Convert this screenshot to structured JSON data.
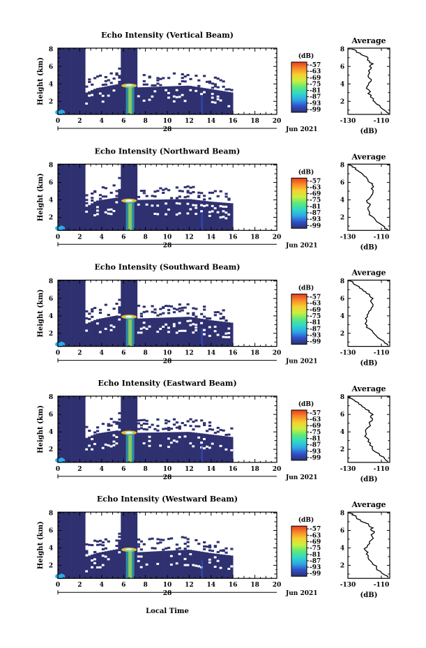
{
  "figure": {
    "bottom_xlabel": "Local Time",
    "date_label": "Jun 2021",
    "day_label": "28",
    "average_title": "Average",
    "average_unit": "(dB)",
    "colorbar_unit": "(dB)",
    "colorbar_ticks": [
      "-57",
      "-63",
      "-69",
      "-75",
      "-81",
      "-87",
      "-93",
      "-99"
    ],
    "colormap": [
      "#2f3070",
      "#3050c8",
      "#2fa8e6",
      "#30d8c8",
      "#5fe87a",
      "#c8f040",
      "#f8d030",
      "#f88a28",
      "#e83a22"
    ],
    "nodata_color": "#ffffff"
  },
  "chart_data": [
    {
      "type": "heatmap",
      "title": "Echo Intensity (Vertical Beam)",
      "ylabel": "Height (km)",
      "xlim": [
        0,
        20
      ],
      "ylim": [
        0.5,
        8.1
      ],
      "xticks": [
        0,
        2,
        4,
        6,
        8,
        10,
        12,
        14,
        16,
        18,
        20
      ],
      "yticks": [
        2,
        4,
        6,
        8
      ],
      "data_end_hour": 16,
      "echo_top_km": [
        [
          0,
          8.1
        ],
        [
          2.5,
          8.1
        ],
        [
          2.6,
          3.0
        ],
        [
          3.5,
          3.5
        ],
        [
          5.6,
          4.0
        ],
        [
          5.7,
          8.1
        ],
        [
          7.2,
          8.1
        ],
        [
          7.3,
          3.6
        ],
        [
          12.0,
          3.8
        ],
        [
          14.0,
          3.4
        ],
        [
          16.0,
          3.0
        ]
      ],
      "strong_echo": [
        {
          "hour": 6.5,
          "km": 3.8,
          "level_db": -69
        },
        {
          "hour": 6.6,
          "km": 1.5,
          "level_db": -81
        },
        {
          "hour": 0.2,
          "km": 1.0,
          "level_db": -87
        }
      ],
      "average": {
        "xlim": [
          -130,
          -105
        ],
        "xticks": [
          -130,
          -110
        ],
        "ylim": [
          0.5,
          8.1
        ],
        "yticks": [
          2,
          4,
          6,
          8
        ],
        "db": [
          -105.5,
          -107.5,
          -110.5,
          -113,
          -115,
          -116.5,
          -118,
          -117.5,
          -118.5,
          -117.5,
          -116,
          -118,
          -117,
          -116.5,
          -117,
          -115,
          -117,
          -118,
          -120,
          -122.5,
          -125,
          -128
        ],
        "km": [
          0.6,
          0.9,
          1.3,
          1.7,
          2.1,
          2.5,
          2.9,
          3.3,
          3.7,
          4.1,
          4.5,
          4.9,
          5.3,
          5.7,
          6.0,
          6.3,
          6.6,
          6.9,
          7.2,
          7.5,
          7.8,
          8.0
        ]
      }
    },
    {
      "type": "heatmap",
      "title": "Echo Intensity (Northward Beam)",
      "ylabel": "Height (km)",
      "xlim": [
        0,
        20
      ],
      "ylim": [
        0.5,
        8.1
      ],
      "xticks": [
        0,
        2,
        4,
        6,
        8,
        10,
        12,
        14,
        16,
        18,
        20
      ],
      "yticks": [
        2,
        4,
        6,
        8
      ],
      "data_end_hour": 16,
      "echo_top_km": [
        [
          0,
          8.1
        ],
        [
          2.5,
          8.1
        ],
        [
          2.6,
          3.2
        ],
        [
          3.5,
          3.9
        ],
        [
          5.6,
          4.3
        ],
        [
          5.7,
          8.1
        ],
        [
          7.2,
          8.1
        ],
        [
          7.3,
          4.0
        ],
        [
          12.0,
          4.1
        ],
        [
          14.0,
          3.8
        ],
        [
          16.0,
          3.6
        ]
      ],
      "strong_echo": [
        {
          "hour": 6.5,
          "km": 3.9,
          "level_db": -69
        },
        {
          "hour": 6.6,
          "km": 1.5,
          "level_db": -81
        },
        {
          "hour": 0.2,
          "km": 1.0,
          "level_db": -87
        }
      ],
      "average": {
        "xlim": [
          -130,
          -105
        ],
        "xticks": [
          -130,
          -110
        ],
        "ylim": [
          0.5,
          8.1
        ],
        "yticks": [
          2,
          4,
          6,
          8
        ],
        "db": [
          -106,
          -108,
          -111,
          -113.5,
          -115.5,
          -117,
          -118,
          -117,
          -118.5,
          -117.5,
          -116,
          -115,
          -116,
          -115.5,
          -117,
          -118,
          -119,
          -121,
          -123,
          -125.5,
          -127.5,
          -129
        ],
        "km": [
          0.6,
          0.9,
          1.3,
          1.7,
          2.1,
          2.5,
          2.9,
          3.3,
          3.7,
          4.1,
          4.5,
          4.9,
          5.3,
          5.7,
          6.0,
          6.3,
          6.6,
          6.9,
          7.2,
          7.5,
          7.8,
          8.0
        ]
      }
    },
    {
      "type": "heatmap",
      "title": "Echo Intensity (Southward Beam)",
      "ylabel": "Height (km)",
      "xlim": [
        0,
        20
      ],
      "ylim": [
        0.5,
        8.1
      ],
      "xticks": [
        0,
        2,
        4,
        6,
        8,
        10,
        12,
        14,
        16,
        18,
        20
      ],
      "yticks": [
        2,
        4,
        6,
        8
      ],
      "data_end_hour": 16,
      "echo_top_km": [
        [
          0,
          8.1
        ],
        [
          2.5,
          8.1
        ],
        [
          2.6,
          3.1
        ],
        [
          3.5,
          3.6
        ],
        [
          5.6,
          4.1
        ],
        [
          5.7,
          8.1
        ],
        [
          7.2,
          8.1
        ],
        [
          7.3,
          3.7
        ],
        [
          12.0,
          3.9
        ],
        [
          14.0,
          3.5
        ],
        [
          16.0,
          3.2
        ]
      ],
      "strong_echo": [
        {
          "hour": 6.5,
          "km": 3.9,
          "level_db": -69
        },
        {
          "hour": 6.6,
          "km": 1.5,
          "level_db": -81
        },
        {
          "hour": 0.2,
          "km": 1.0,
          "level_db": -87
        }
      ],
      "average": {
        "xlim": [
          -130,
          -105
        ],
        "xticks": [
          -130,
          -110
        ],
        "ylim": [
          0.5,
          8.1
        ],
        "yticks": [
          2,
          4,
          6,
          8
        ],
        "db": [
          -106,
          -108,
          -110.5,
          -113,
          -115,
          -117,
          -118.5,
          -119,
          -119.5,
          -118.5,
          -117.5,
          -116,
          -115,
          -116.5,
          -115,
          -117,
          -119,
          -121,
          -123,
          -125,
          -127,
          -128.5
        ],
        "km": [
          0.6,
          0.9,
          1.3,
          1.7,
          2.1,
          2.5,
          2.9,
          3.3,
          3.7,
          4.1,
          4.5,
          4.9,
          5.3,
          5.7,
          6.0,
          6.3,
          6.6,
          6.9,
          7.2,
          7.5,
          7.8,
          8.0
        ]
      }
    },
    {
      "type": "heatmap",
      "title": "Echo Intensity (Eastward Beam)",
      "ylabel": "Height (km)",
      "xlim": [
        0,
        20
      ],
      "ylim": [
        0.5,
        8.1
      ],
      "xticks": [
        0,
        2,
        4,
        6,
        8,
        10,
        12,
        14,
        16,
        18,
        20
      ],
      "yticks": [
        2,
        4,
        6,
        8
      ],
      "data_end_hour": 16,
      "echo_top_km": [
        [
          0,
          8.1
        ],
        [
          2.5,
          8.1
        ],
        [
          2.6,
          3.3
        ],
        [
          3.5,
          3.8
        ],
        [
          5.6,
          4.2
        ],
        [
          5.7,
          8.1
        ],
        [
          7.2,
          8.1
        ],
        [
          7.3,
          3.9
        ],
        [
          12.0,
          4.0
        ],
        [
          14.0,
          3.7
        ],
        [
          16.0,
          3.4
        ]
      ],
      "strong_echo": [
        {
          "hour": 6.5,
          "km": 3.9,
          "level_db": -69
        },
        {
          "hour": 6.6,
          "km": 1.5,
          "level_db": -81
        },
        {
          "hour": 0.2,
          "km": 1.0,
          "level_db": -87
        }
      ],
      "average": {
        "xlim": [
          -130,
          -105
        ],
        "xticks": [
          -130,
          -110
        ],
        "ylim": [
          0.5,
          8.1
        ],
        "yticks": [
          2,
          4,
          6,
          8
        ],
        "db": [
          -106,
          -108,
          -111,
          -113.5,
          -115.5,
          -117,
          -118,
          -118.5,
          -119,
          -119.5,
          -118,
          -117,
          -115.5,
          -116.5,
          -115,
          -117.5,
          -119.5,
          -121.5,
          -123.5,
          -125.5,
          -127.5,
          -129
        ],
        "km": [
          0.6,
          0.9,
          1.3,
          1.7,
          2.1,
          2.5,
          2.9,
          3.3,
          3.7,
          4.1,
          4.5,
          4.9,
          5.3,
          5.7,
          6.0,
          6.3,
          6.6,
          6.9,
          7.2,
          7.5,
          7.8,
          8.0
        ]
      }
    },
    {
      "type": "heatmap",
      "title": "Echo Intensity (Westward Beam)",
      "ylabel": "Height (km)",
      "xlim": [
        0,
        20
      ],
      "ylim": [
        0.5,
        8.1
      ],
      "xticks": [
        0,
        2,
        4,
        6,
        8,
        10,
        12,
        14,
        16,
        18,
        20
      ],
      "yticks": [
        2,
        4,
        6,
        8
      ],
      "data_end_hour": 16,
      "echo_top_km": [
        [
          0,
          8.1
        ],
        [
          2.5,
          8.1
        ],
        [
          2.6,
          3.0
        ],
        [
          3.5,
          3.4
        ],
        [
          5.6,
          3.9
        ],
        [
          5.7,
          8.1
        ],
        [
          7.2,
          8.1
        ],
        [
          7.3,
          3.5
        ],
        [
          12.0,
          3.8
        ],
        [
          14.0,
          3.4
        ],
        [
          16.0,
          3.1
        ]
      ],
      "strong_echo": [
        {
          "hour": 6.5,
          "km": 3.8,
          "level_db": -69
        },
        {
          "hour": 6.6,
          "km": 1.5,
          "level_db": -81
        },
        {
          "hour": 0.2,
          "km": 1.0,
          "level_db": -87
        }
      ],
      "average": {
        "xlim": [
          -130,
          -105
        ],
        "xticks": [
          -130,
          -110
        ],
        "ylim": [
          0.5,
          8.1
        ],
        "yticks": [
          2,
          4,
          6,
          8
        ],
        "db": [
          -106,
          -108,
          -110.5,
          -113,
          -115,
          -116.5,
          -118,
          -119,
          -119.5,
          -118.5,
          -117,
          -116,
          -115.5,
          -114.5,
          -116,
          -115,
          -117.5,
          -120,
          -122.5,
          -125,
          -127.5,
          -129
        ],
        "km": [
          0.6,
          0.9,
          1.3,
          1.7,
          2.1,
          2.5,
          2.9,
          3.3,
          3.7,
          4.1,
          4.5,
          4.9,
          5.3,
          5.7,
          6.0,
          6.3,
          6.6,
          6.9,
          7.2,
          7.5,
          7.8,
          8.0
        ]
      }
    }
  ]
}
